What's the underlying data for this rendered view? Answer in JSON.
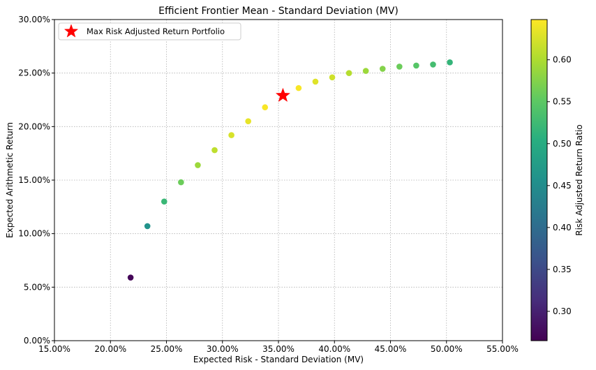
{
  "chart_data": {
    "type": "scatter",
    "title": "Efficient Frontier Mean - Standard Deviation (MV)",
    "xlabel": "Expected Risk - Standard Deviation (MV)",
    "ylabel": "Expected Arithmetic Return",
    "xlim": [
      0.15,
      0.55
    ],
    "ylim": [
      0.0,
      0.3
    ],
    "x_ticks": [
      0.15,
      0.2,
      0.25,
      0.3,
      0.35,
      0.4,
      0.45,
      0.5,
      0.55
    ],
    "x_tick_labels": [
      "15.00%",
      "20.00%",
      "25.00%",
      "30.00%",
      "35.00%",
      "40.00%",
      "45.00%",
      "50.00%",
      "55.00%"
    ],
    "y_ticks": [
      0.0,
      0.05,
      0.1,
      0.15,
      0.2,
      0.25,
      0.3
    ],
    "y_tick_labels": [
      "0.00%",
      "5.00%",
      "10.00%",
      "15.00%",
      "20.00%",
      "25.00%",
      "30.00%"
    ],
    "grid": true,
    "legend_position": "upper-left",
    "points": [
      {
        "x": 0.218,
        "y": 0.059,
        "ratio": 0.27
      },
      {
        "x": 0.233,
        "y": 0.107,
        "ratio": 0.46
      },
      {
        "x": 0.248,
        "y": 0.13,
        "ratio": 0.52
      },
      {
        "x": 0.263,
        "y": 0.148,
        "ratio": 0.56
      },
      {
        "x": 0.278,
        "y": 0.164,
        "ratio": 0.59
      },
      {
        "x": 0.293,
        "y": 0.178,
        "ratio": 0.61
      },
      {
        "x": 0.308,
        "y": 0.192,
        "ratio": 0.625
      },
      {
        "x": 0.323,
        "y": 0.205,
        "ratio": 0.635
      },
      {
        "x": 0.338,
        "y": 0.218,
        "ratio": 0.645
      },
      {
        "x": 0.368,
        "y": 0.236,
        "ratio": 0.645
      },
      {
        "x": 0.383,
        "y": 0.242,
        "ratio": 0.63
      },
      {
        "x": 0.398,
        "y": 0.246,
        "ratio": 0.62
      },
      {
        "x": 0.413,
        "y": 0.25,
        "ratio": 0.605
      },
      {
        "x": 0.428,
        "y": 0.252,
        "ratio": 0.59
      },
      {
        "x": 0.443,
        "y": 0.254,
        "ratio": 0.575
      },
      {
        "x": 0.458,
        "y": 0.256,
        "ratio": 0.56
      },
      {
        "x": 0.473,
        "y": 0.257,
        "ratio": 0.545
      },
      {
        "x": 0.488,
        "y": 0.258,
        "ratio": 0.53
      },
      {
        "x": 0.503,
        "y": 0.26,
        "ratio": 0.515
      }
    ],
    "highlight": {
      "label": "Max Risk Adjusted Return Portfolio",
      "x": 0.354,
      "y": 0.229,
      "color": "#ff0000",
      "marker": "star"
    },
    "colorbar": {
      "label": "Risk Adjusted Return Ratio",
      "colormap": "viridis",
      "range": [
        0.265,
        0.648
      ],
      "ticks": [
        0.3,
        0.35,
        0.4,
        0.45,
        0.5,
        0.55,
        0.6
      ],
      "tick_labels": [
        "0.30",
        "0.35",
        "0.40",
        "0.45",
        "0.50",
        "0.55",
        "0.60"
      ]
    }
  }
}
